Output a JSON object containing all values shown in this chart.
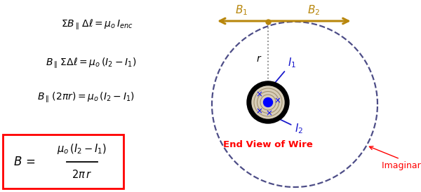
{
  "bg_color": "#ffffff",
  "eq1": "$\\Sigma B_{\\parallel}\\, \\Delta\\ell = \\mu_o\\, I_{enc}$",
  "eq2": "$B_{\\parallel}\\, \\Sigma \\Delta\\ell = \\mu_o\\, (I_2 - I_1)$",
  "eq3": "$B_{\\parallel}\\, (2\\pi r) = \\mu_o\\, (I_2 - I_1)$",
  "eq4_top": "$\\mu_o\\, (I_2-I_1)$",
  "eq4_bot": "$2\\pi\\, r$",
  "eq4_B": "$B\\, = $",
  "box_color": "red",
  "arrow_color": "#b8860b",
  "dashed_color": "#3a3a7a",
  "label_I1": "$I_1$",
  "label_I2": "$I_2$",
  "label_r": "$r$",
  "label_B1": "$B_1$",
  "label_B2": "$B_2$",
  "label_end_view": "End View of Wire",
  "label_imaginary": "Imaginary Loop",
  "text_color_blue": "#1a1acc",
  "text_color_red": "red",
  "text_color_black": "black",
  "fig_w": 6.0,
  "fig_h": 2.74,
  "dpi": 100
}
